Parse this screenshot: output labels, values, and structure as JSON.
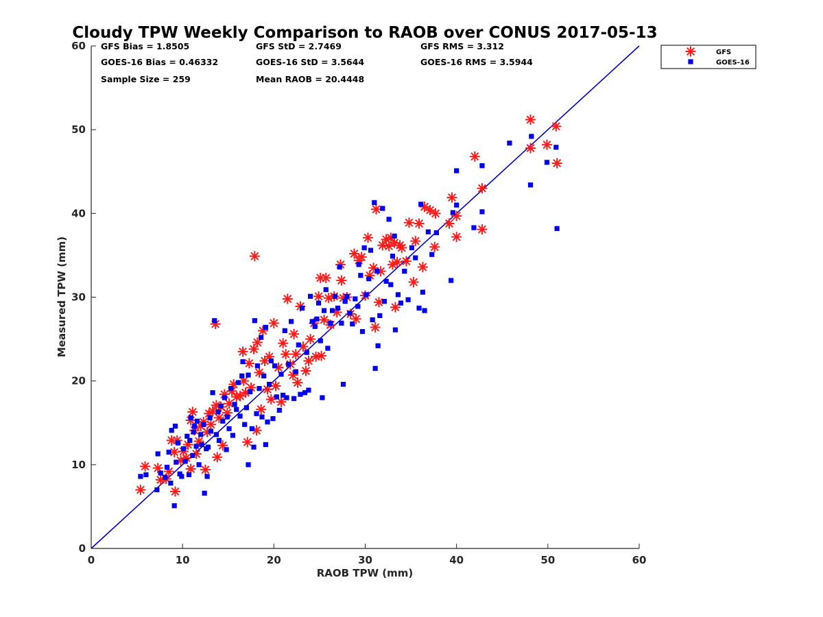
{
  "chart_data": {
    "type": "scatter",
    "title": "Cloudy TPW Weekly Comparison to RAOB over CONUS 2017-05-13",
    "xlabel": "RAOB TPW (mm)",
    "ylabel": "Measured TPW (mm)",
    "xlim": [
      0,
      60
    ],
    "ylim": [
      0,
      60
    ],
    "xticks": [
      0,
      10,
      20,
      30,
      40,
      50,
      60
    ],
    "yticks": [
      0,
      10,
      20,
      30,
      40,
      50,
      60
    ],
    "grid": false,
    "legend_position": "outside-top-right",
    "stats": [
      "GFS Bias = 1.8505",
      "GFS StD = 2.7469",
      "GFS RMS = 3.312",
      "GOES-16 Bias = 0.46332",
      "GOES-16 StD = 3.5644",
      "GOES-16 RMS = 3.5944",
      "Sample Size = 259",
      "Mean RAOB = 20.4448"
    ],
    "reference_line": {
      "from": [
        0,
        0
      ],
      "to": [
        60,
        60
      ],
      "color": "#0000cc"
    },
    "series": [
      {
        "name": "GFS",
        "color": "#ff1a1a",
        "marker": "asterisk",
        "points": [
          [
            5.4,
            7.0
          ],
          [
            5.9,
            9.8
          ],
          [
            7.3,
            9.6
          ],
          [
            7.6,
            8.2
          ],
          [
            8.2,
            8.3
          ],
          [
            8.5,
            9.2
          ],
          [
            8.8,
            12.9
          ],
          [
            9.1,
            11.5
          ],
          [
            9.2,
            6.8
          ],
          [
            9.4,
            12.9
          ],
          [
            9.8,
            10.5
          ],
          [
            10.1,
            11.6
          ],
          [
            10.4,
            10.8
          ],
          [
            10.6,
            12.4
          ],
          [
            10.9,
            9.5
          ],
          [
            10.9,
            15.3
          ],
          [
            11.1,
            16.3
          ],
          [
            11.3,
            14.1
          ],
          [
            11.5,
            11.3
          ],
          [
            11.8,
            12.8
          ],
          [
            12.0,
            14.6
          ],
          [
            12.3,
            15.1
          ],
          [
            12.5,
            9.4
          ],
          [
            12.7,
            13.9
          ],
          [
            12.9,
            16.1
          ],
          [
            13.1,
            14.8
          ],
          [
            13.3,
            16.4
          ],
          [
            13.6,
            26.8
          ],
          [
            13.7,
            17.1
          ],
          [
            13.8,
            10.9
          ],
          [
            14.0,
            15.6
          ],
          [
            14.2,
            16.9
          ],
          [
            14.4,
            12.3
          ],
          [
            14.6,
            18.4
          ],
          [
            14.9,
            16.2
          ],
          [
            15.1,
            17.3
          ],
          [
            15.4,
            18.8
          ],
          [
            15.6,
            19.6
          ],
          [
            15.9,
            18.1
          ],
          [
            16.3,
            18.2
          ],
          [
            16.6,
            23.5
          ],
          [
            16.7,
            20.0
          ],
          [
            16.9,
            18.6
          ],
          [
            17.1,
            12.7
          ],
          [
            17.3,
            22.1
          ],
          [
            17.5,
            19.2
          ],
          [
            17.8,
            23.8
          ],
          [
            17.9,
            34.9
          ],
          [
            18.1,
            14.1
          ],
          [
            18.2,
            24.6
          ],
          [
            18.4,
            21.0
          ],
          [
            18.6,
            16.6
          ],
          [
            18.8,
            26.0
          ],
          [
            19.0,
            22.4
          ],
          [
            19.3,
            19.0
          ],
          [
            19.5,
            22.9
          ],
          [
            19.7,
            17.8
          ],
          [
            20.0,
            26.9
          ],
          [
            20.2,
            19.4
          ],
          [
            20.5,
            21.6
          ],
          [
            20.8,
            17.5
          ],
          [
            21.0,
            24.5
          ],
          [
            21.3,
            23.2
          ],
          [
            21.5,
            29.8
          ],
          [
            21.8,
            22.0
          ],
          [
            22.1,
            20.7
          ],
          [
            22.2,
            25.6
          ],
          [
            22.4,
            23.2
          ],
          [
            22.6,
            19.8
          ],
          [
            22.9,
            28.9
          ],
          [
            23.2,
            24.1
          ],
          [
            23.5,
            21.2
          ],
          [
            23.8,
            22.4
          ],
          [
            24.0,
            25.0
          ],
          [
            24.4,
            26.9
          ],
          [
            24.6,
            22.9
          ],
          [
            24.9,
            30.1
          ],
          [
            25.1,
            32.3
          ],
          [
            25.2,
            23.0
          ],
          [
            25.5,
            27.3
          ],
          [
            25.7,
            32.3
          ],
          [
            26.0,
            29.9
          ],
          [
            26.2,
            26.7
          ],
          [
            26.6,
            30.1
          ],
          [
            26.9,
            28.2
          ],
          [
            27.3,
            33.9
          ],
          [
            27.4,
            32.0
          ],
          [
            27.6,
            29.9
          ],
          [
            28.0,
            30.0
          ],
          [
            28.4,
            28.0
          ],
          [
            28.8,
            35.2
          ],
          [
            29.0,
            27.4
          ],
          [
            29.3,
            34.4
          ],
          [
            29.6,
            34.8
          ],
          [
            30.0,
            30.2
          ],
          [
            30.3,
            37.1
          ],
          [
            30.5,
            32.6
          ],
          [
            30.9,
            33.5
          ],
          [
            31.1,
            26.4
          ],
          [
            31.2,
            40.5
          ],
          [
            31.5,
            29.4
          ],
          [
            31.7,
            33.1
          ],
          [
            31.9,
            36.2
          ],
          [
            32.3,
            36.9
          ],
          [
            32.6,
            36.1
          ],
          [
            32.8,
            37.1
          ],
          [
            33.0,
            33.9
          ],
          [
            33.2,
            36.5
          ],
          [
            33.3,
            28.8
          ],
          [
            33.5,
            34.2
          ],
          [
            33.8,
            36.2
          ],
          [
            34.0,
            35.9
          ],
          [
            34.5,
            34.3
          ],
          [
            34.8,
            38.9
          ],
          [
            35.3,
            31.8
          ],
          [
            35.5,
            36.7
          ],
          [
            35.9,
            38.8
          ],
          [
            36.3,
            33.6
          ],
          [
            36.5,
            40.8
          ],
          [
            37.1,
            40.4
          ],
          [
            37.6,
            36.0
          ],
          [
            37.7,
            40.0
          ],
          [
            39.2,
            38.8
          ],
          [
            39.5,
            41.9
          ],
          [
            40.0,
            39.7
          ],
          [
            40.0,
            37.2
          ],
          [
            42.0,
            46.8
          ],
          [
            42.8,
            43.0
          ],
          [
            42.8,
            38.1
          ],
          [
            48.1,
            51.2
          ],
          [
            48.1,
            47.8
          ],
          [
            49.9,
            48.2
          ],
          [
            50.9,
            50.4
          ],
          [
            51.0,
            46.0
          ]
        ]
      },
      {
        "name": "GOES-16",
        "color": "#0000ee",
        "marker": "square",
        "points": [
          [
            5.4,
            8.6
          ],
          [
            6.0,
            8.8
          ],
          [
            7.2,
            7.0
          ],
          [
            7.3,
            11.3
          ],
          [
            7.6,
            9.0
          ],
          [
            8.1,
            8.5
          ],
          [
            8.3,
            9.7
          ],
          [
            8.5,
            11.5
          ],
          [
            8.7,
            7.8
          ],
          [
            8.8,
            14.1
          ],
          [
            9.1,
            5.1
          ],
          [
            9.2,
            14.6
          ],
          [
            9.3,
            10.3
          ],
          [
            9.5,
            12.6
          ],
          [
            9.7,
            8.9
          ],
          [
            9.9,
            8.6
          ],
          [
            10.1,
            11.9
          ],
          [
            10.3,
            10.4
          ],
          [
            10.5,
            13.4
          ],
          [
            10.7,
            8.8
          ],
          [
            10.8,
            12.9
          ],
          [
            10.9,
            15.6
          ],
          [
            11.1,
            11.1
          ],
          [
            11.2,
            13.9
          ],
          [
            11.3,
            14.6
          ],
          [
            11.5,
            12.2
          ],
          [
            11.6,
            15.2
          ],
          [
            11.8,
            10.0
          ],
          [
            12.0,
            13.6
          ],
          [
            12.1,
            12.4
          ],
          [
            12.3,
            14.8
          ],
          [
            12.4,
            6.6
          ],
          [
            12.6,
            11.9
          ],
          [
            12.7,
            8.6
          ],
          [
            12.8,
            12.1
          ],
          [
            13.0,
            15.6
          ],
          [
            13.1,
            14.0
          ],
          [
            13.3,
            18.6
          ],
          [
            13.5,
            27.2
          ],
          [
            13.7,
            13.6
          ],
          [
            13.9,
            16.3
          ],
          [
            14.0,
            12.9
          ],
          [
            14.2,
            17.0
          ],
          [
            14.4,
            15.2
          ],
          [
            14.6,
            18.0
          ],
          [
            14.8,
            11.8
          ],
          [
            14.9,
            15.7
          ],
          [
            15.1,
            14.3
          ],
          [
            15.3,
            19.1
          ],
          [
            15.5,
            13.5
          ],
          [
            15.7,
            17.2
          ],
          [
            15.9,
            16.6
          ],
          [
            16.1,
            19.8
          ],
          [
            16.3,
            15.8
          ],
          [
            16.5,
            20.6
          ],
          [
            16.6,
            22.3
          ],
          [
            16.8,
            14.8
          ],
          [
            17.0,
            16.8
          ],
          [
            17.2,
            10.0
          ],
          [
            17.2,
            20.7
          ],
          [
            17.4,
            18.7
          ],
          [
            17.6,
            14.3
          ],
          [
            17.8,
            12.1
          ],
          [
            17.9,
            27.2
          ],
          [
            18.1,
            16.1
          ],
          [
            18.2,
            21.8
          ],
          [
            18.4,
            19.1
          ],
          [
            18.6,
            25.2
          ],
          [
            18.7,
            15.7
          ],
          [
            18.9,
            20.6
          ],
          [
            19.1,
            12.4
          ],
          [
            19.1,
            26.4
          ],
          [
            19.3,
            15.1
          ],
          [
            19.5,
            19.6
          ],
          [
            19.7,
            22.4
          ],
          [
            19.9,
            15.5
          ],
          [
            20.1,
            21.8
          ],
          [
            20.3,
            18.1
          ],
          [
            20.6,
            16.5
          ],
          [
            20.8,
            20.8
          ],
          [
            21.0,
            18.3
          ],
          [
            21.2,
            26.0
          ],
          [
            21.4,
            18.0
          ],
          [
            21.6,
            22.0
          ],
          [
            21.9,
            27.1
          ],
          [
            22.2,
            17.9
          ],
          [
            22.4,
            21.1
          ],
          [
            22.7,
            24.3
          ],
          [
            22.9,
            18.4
          ],
          [
            23.1,
            28.7
          ],
          [
            23.4,
            18.6
          ],
          [
            23.6,
            23.4
          ],
          [
            23.8,
            18.9
          ],
          [
            24.0,
            30.1
          ],
          [
            24.2,
            27.1
          ],
          [
            24.5,
            26.5
          ],
          [
            24.7,
            27.4
          ],
          [
            24.9,
            29.3
          ],
          [
            25.1,
            24.8
          ],
          [
            25.3,
            18.0
          ],
          [
            25.5,
            28.4
          ],
          [
            25.7,
            30.9
          ],
          [
            25.9,
            23.9
          ],
          [
            26.2,
            26.9
          ],
          [
            26.4,
            28.4
          ],
          [
            26.7,
            30.1
          ],
          [
            27.0,
            28.7
          ],
          [
            27.2,
            33.6
          ],
          [
            27.4,
            26.9
          ],
          [
            27.6,
            19.6
          ],
          [
            27.8,
            29.5
          ],
          [
            28.0,
            30.1
          ],
          [
            28.3,
            28.1
          ],
          [
            28.6,
            26.8
          ],
          [
            28.9,
            29.8
          ],
          [
            29.2,
            28.9
          ],
          [
            29.3,
            33.9
          ],
          [
            29.5,
            32.6
          ],
          [
            29.7,
            25.9
          ],
          [
            29.9,
            35.9
          ],
          [
            30.1,
            30.3
          ],
          [
            30.4,
            32.2
          ],
          [
            30.6,
            35.6
          ],
          [
            30.8,
            27.3
          ],
          [
            31.0,
            41.3
          ],
          [
            31.1,
            21.5
          ],
          [
            31.3,
            33.1
          ],
          [
            31.4,
            24.2
          ],
          [
            31.6,
            27.8
          ],
          [
            31.9,
            40.6
          ],
          [
            32.1,
            29.5
          ],
          [
            32.3,
            31.9
          ],
          [
            32.6,
            39.3
          ],
          [
            32.8,
            31.5
          ],
          [
            33.0,
            34.9
          ],
          [
            33.2,
            37.3
          ],
          [
            33.3,
            26.1
          ],
          [
            33.6,
            30.3
          ],
          [
            33.9,
            29.3
          ],
          [
            34.3,
            33.1
          ],
          [
            34.7,
            29.7
          ],
          [
            35.1,
            35.9
          ],
          [
            35.5,
            34.7
          ],
          [
            35.9,
            28.7
          ],
          [
            36.1,
            41.1
          ],
          [
            36.3,
            30.6
          ],
          [
            36.5,
            28.4
          ],
          [
            36.9,
            37.8
          ],
          [
            37.3,
            35.1
          ],
          [
            37.8,
            37.7
          ],
          [
            39.4,
            32.0
          ],
          [
            39.6,
            40.1
          ],
          [
            40.0,
            41.0
          ],
          [
            40.0,
            45.1
          ],
          [
            41.9,
            38.3
          ],
          [
            42.8,
            45.7
          ],
          [
            42.8,
            40.2
          ],
          [
            45.8,
            48.4
          ],
          [
            48.2,
            49.2
          ],
          [
            48.1,
            43.4
          ],
          [
            49.9,
            46.1
          ],
          [
            50.9,
            47.9
          ],
          [
            51.0,
            38.2
          ]
        ]
      }
    ]
  }
}
